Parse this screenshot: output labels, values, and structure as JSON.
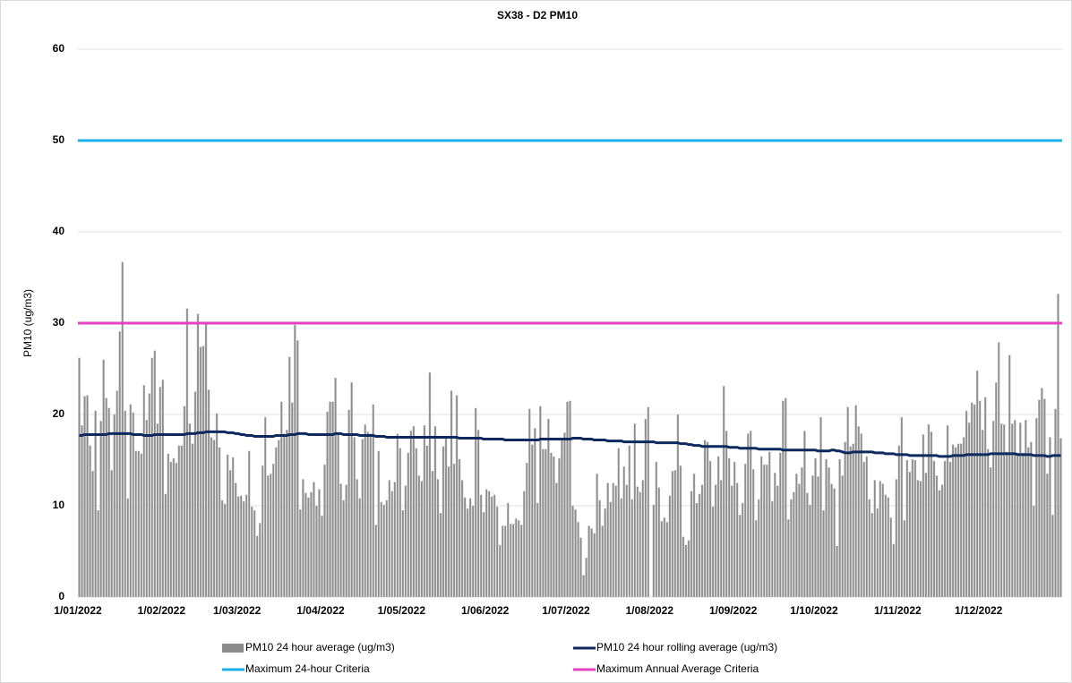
{
  "chart_data": {
    "type": "bar",
    "title": "SX38 - D2 PM10",
    "ylabel": "PM10 (ug/m3)",
    "ylim": [
      0,
      60
    ],
    "yticks": [
      0,
      10,
      20,
      30,
      40,
      50,
      60
    ],
    "grid": true,
    "legend": "bottom",
    "categories": [
      "1/01/2022",
      null,
      null,
      null,
      null,
      null,
      null,
      null,
      null,
      null,
      null,
      null,
      null,
      null,
      null,
      null,
      null,
      null,
      null,
      null,
      null,
      null,
      null,
      null,
      null,
      null,
      null,
      null,
      null,
      null,
      null,
      "1/02/2022",
      null,
      null,
      null,
      null,
      null,
      null,
      null,
      null,
      null,
      null,
      null,
      null,
      null,
      null,
      null,
      null,
      null,
      null,
      null,
      null,
      null,
      null,
      null,
      null,
      null,
      null,
      null,
      "1/03/2022",
      null,
      null,
      null,
      null,
      null,
      null,
      null,
      null,
      null,
      null,
      null,
      null,
      null,
      null,
      null,
      null,
      null,
      null,
      null,
      null,
      null,
      null,
      null,
      null,
      null,
      null,
      null,
      null,
      null,
      null,
      "1/04/2022",
      null,
      null,
      null,
      null,
      null,
      null,
      null,
      null,
      null,
      null,
      null,
      null,
      null,
      null,
      null,
      null,
      null,
      null,
      null,
      null,
      null,
      null,
      null,
      null,
      null,
      null,
      null,
      null,
      null,
      "1/05/2022",
      null,
      null,
      null,
      null,
      null,
      null,
      null,
      null,
      null,
      null,
      null,
      null,
      null,
      null,
      null,
      null,
      null,
      null,
      null,
      null,
      null,
      null,
      null,
      null,
      null,
      null,
      null,
      null,
      null,
      null,
      "1/06/2022",
      null,
      null,
      null,
      null,
      null,
      null,
      null,
      null,
      null,
      null,
      null,
      null,
      null,
      null,
      null,
      null,
      null,
      null,
      null,
      null,
      null,
      null,
      null,
      null,
      null,
      null,
      null,
      null,
      null,
      "1/07/2022",
      null,
      null,
      null,
      null,
      null,
      null,
      null,
      null,
      null,
      null,
      null,
      null,
      null,
      null,
      null,
      null,
      null,
      null,
      null,
      null,
      null,
      null,
      null,
      null,
      null,
      null,
      null,
      null,
      null,
      null,
      "1/08/2022",
      null,
      null,
      null,
      null,
      null,
      null,
      null,
      null,
      null,
      null,
      null,
      null,
      null,
      null,
      null,
      null,
      null,
      null,
      null,
      null,
      null,
      null,
      null,
      null,
      null,
      null,
      null,
      null,
      null,
      null,
      "1/09/2022",
      null,
      null,
      null,
      null,
      null,
      null,
      null,
      null,
      null,
      null,
      null,
      null,
      null,
      null,
      null,
      null,
      null,
      null,
      null,
      null,
      null,
      null,
      null,
      null,
      null,
      null,
      null,
      null,
      null,
      "1/10/2022",
      null,
      null,
      null,
      null,
      null,
      null,
      null,
      null,
      null,
      null,
      null,
      null,
      null,
      null,
      null,
      null,
      null,
      null,
      null,
      null,
      null,
      null,
      null,
      null,
      null,
      null,
      null,
      null,
      null,
      null,
      "1/11/2022",
      null,
      null,
      null,
      null,
      null,
      null,
      null,
      null,
      null,
      null,
      null,
      null,
      null,
      null,
      null,
      null,
      null,
      null,
      null,
      null,
      null,
      null,
      null,
      null,
      null,
      null,
      null,
      null,
      null,
      "1/12/2022",
      null,
      null,
      null,
      null,
      null,
      null,
      null,
      null,
      null,
      null,
      null,
      null,
      null,
      null,
      null,
      null,
      null,
      null,
      null,
      null,
      null,
      null,
      null,
      null,
      null,
      null,
      null,
      null,
      null,
      null
    ],
    "series": [
      {
        "name": "PM10 24 hour average (ug/m3)",
        "type": "bar",
        "color": "#8c8c8c",
        "values": [
          26.2,
          18.8,
          22,
          22.1,
          16.6,
          13.8,
          20.4,
          9.5,
          19.3,
          26,
          21.8,
          20.7,
          13.9,
          20,
          22.6,
          29.1,
          36.7,
          20.4,
          10.8,
          21.1,
          20.2,
          16,
          16,
          15.7,
          23.2,
          19.4,
          22.3,
          26.2,
          27,
          19,
          23,
          23.8,
          11.3,
          15.7,
          14.8,
          15.2,
          14.7,
          16.6,
          16.6,
          20.9,
          31.6,
          19,
          16.8,
          22.5,
          31,
          27.4,
          27.5,
          29.9,
          22.7,
          17.5,
          17.2,
          20.1,
          16.4,
          10.6,
          10.2,
          15.6,
          13.9,
          15.3,
          12.5,
          11,
          11.1,
          10.5,
          11.2,
          16,
          9.9,
          9.5,
          6.7,
          8.1,
          14.4,
          19.7,
          13.3,
          13.5,
          14.6,
          16.4,
          17.2,
          21.4,
          17.9,
          18.3,
          26.3,
          21.3,
          29.8,
          28.1,
          9.6,
          12.9,
          11.4,
          10.9,
          11.5,
          12.6,
          10,
          11.8,
          8.9,
          14.5,
          20.3,
          21.4,
          21.4,
          24,
          17.9,
          12.4,
          10.6,
          12.3,
          20.5,
          23.5,
          17.5,
          12.9,
          10.8,
          17.3,
          18.9,
          18.1,
          17.9,
          21.1,
          7.9,
          16,
          10.4,
          10.1,
          10.6,
          12.8,
          11.6,
          12.6,
          17.9,
          16.3,
          9.5,
          12.2,
          15.8,
          18.2,
          18.7,
          16.3,
          13.3,
          12.7,
          18.8,
          16.6,
          24.6,
          13.8,
          18.7,
          12.9,
          9.2,
          16.5,
          17.6,
          14.3,
          22.6,
          14.6,
          22.1,
          15.1,
          12.8,
          10.9,
          9.7,
          10.8,
          10,
          20.7,
          18.3,
          11.2,
          9.3,
          11.8,
          11.6,
          11,
          11.2,
          9.9,
          5.7,
          7.8,
          7.8,
          10.3,
          8,
          8,
          8.6,
          8.4,
          7.9,
          11.6,
          14.7,
          20.6,
          16.7,
          18.5,
          10.3,
          20.9,
          16.2,
          16.2,
          19.5,
          15.8,
          15.4,
          12.5,
          15.2,
          17.2,
          18,
          21.4,
          21.5,
          10,
          9.6,
          8.2,
          6.5,
          2.4,
          4.3,
          7.8,
          7.5,
          7,
          13.5,
          10.6,
          7.8,
          9.7,
          12.5,
          10.4,
          12.5,
          12.2,
          16.3,
          10.8,
          14.3,
          12.3,
          16.6,
          10.7,
          19,
          12.1,
          11.5,
          12.8,
          19.5,
          20.8,
          null,
          10.1,
          14.8,
          12,
          8.3,
          8.7,
          8.2,
          11.1,
          13.8,
          13.9,
          20,
          14.4,
          6.6,
          5.7,
          6.2,
          11.6,
          13.5,
          10.3,
          11.3,
          12.3,
          17.2,
          17,
          14.9,
          9.9,
          12.3,
          15.4,
          12.8,
          23.1,
          18.2,
          15.2,
          12.2,
          14.8,
          12.5,
          9,
          10.3,
          14.6,
          17.9,
          18.2,
          14,
          8.4,
          10.7,
          15.4,
          14.5,
          14.5,
          15.9,
          10.5,
          13.6,
          12.2,
          15.8,
          21.5,
          21.8,
          8.5,
          10.7,
          11.5,
          13.5,
          12.4,
          14.2,
          18.2,
          11.4,
          10.1,
          13.3,
          15.2,
          13.2,
          19.7,
          9.5,
          15.1,
          14.2,
          12.4,
          11.9,
          5.6,
          15.1,
          13.3,
          17,
          20.8,
          16.5,
          16.8,
          21,
          18.7,
          17.9,
          14.8,
          15.4,
          10.7,
          9.2,
          12.8,
          9.7,
          12.7,
          12.4,
          11.2,
          10.9,
          8.7,
          5.8,
          12.9,
          16.6,
          19.7,
          8.4,
          15,
          13.7,
          15.1,
          15,
          12.8,
          12.7,
          17.8,
          13.6,
          18.9,
          18.1,
          14.9,
          13.3,
          11.7,
          12.3,
          14.9,
          18.8,
          14.8,
          16.7,
          16.4,
          16.8,
          16.8,
          17.5,
          20.4,
          19.1,
          21.3,
          21.1,
          24.8,
          21.5,
          18.3,
          21.9,
          16.2,
          14.2,
          19.3,
          23.5,
          27.9,
          19,
          18.9,
          15.9,
          26.5,
          19,
          19.4,
          15.8,
          19.1,
          15.8,
          19.4,
          16.4,
          17,
          10,
          19.6,
          21.6,
          22.9,
          21.7,
          13.5,
          17.5,
          9,
          20.6,
          33.2,
          17.4
        ]
      },
      {
        "name": "PM10 24 hour rolling average (ug/m3)",
        "type": "line",
        "color": "#0d2a5e",
        "values": [
          17.7,
          17.7,
          17.8,
          17.8,
          17.8,
          17.8,
          17.8,
          17.8,
          17.8,
          17.8,
          17.8,
          17.9,
          17.9,
          17.9,
          17.9,
          17.9,
          17.9,
          17.9,
          17.9,
          17.9,
          17.8,
          17.8,
          17.8,
          17.8,
          17.7,
          17.7,
          17.7,
          17.7,
          17.8,
          17.8,
          17.8,
          17.8,
          17.8,
          17.8,
          17.8,
          17.8,
          17.8,
          17.8,
          17.8,
          17.8,
          17.9,
          17.9,
          17.9,
          17.9,
          18,
          18,
          18,
          18.1,
          18.1,
          18.1,
          18.1,
          18.1,
          18.1,
          18.1,
          18.1,
          18,
          18,
          18,
          17.9,
          17.9,
          17.8,
          17.8,
          17.7,
          17.7,
          17.7,
          17.6,
          17.6,
          17.6,
          17.6,
          17.6,
          17.6,
          17.6,
          17.6,
          17.7,
          17.7,
          17.7,
          17.7,
          17.7,
          17.8,
          17.8,
          17.8,
          17.9,
          17.9,
          17.9,
          17.9,
          17.8,
          17.8,
          17.8,
          17.8,
          17.8,
          17.8,
          17.8,
          17.8,
          17.8,
          17.8,
          17.9,
          17.9,
          17.9,
          17.8,
          17.8,
          17.8,
          17.8,
          17.8,
          17.8,
          17.7,
          17.7,
          17.7,
          17.7,
          17.7,
          17.7,
          17.6,
          17.6,
          17.6,
          17.6,
          17.5,
          17.5,
          17.5,
          17.5,
          17.5,
          17.5,
          17.5,
          17.5,
          17.5,
          17.5,
          17.5,
          17.5,
          17.5,
          17.5,
          17.5,
          17.5,
          17.5,
          17.5,
          17.5,
          17.5,
          17.5,
          17.5,
          17.5,
          17.5,
          17.5,
          17.5,
          17.5,
          17.4,
          17.4,
          17.4,
          17.4,
          17.4,
          17.4,
          17.4,
          17.4,
          17.4,
          17.3,
          17.3,
          17.3,
          17.3,
          17.3,
          17.3,
          17.3,
          17.3,
          17.2,
          17.2,
          17.2,
          17.2,
          17.2,
          17.2,
          17.2,
          17.2,
          17.2,
          17.2,
          17.2,
          17.2,
          17.2,
          17.3,
          17.3,
          17.3,
          17.3,
          17.3,
          17.3,
          17.3,
          17.3,
          17.3,
          17.3,
          17.3,
          17.3,
          17.4,
          17.4,
          17.4,
          17.4,
          17.3,
          17.3,
          17.3,
          17.3,
          17.2,
          17.2,
          17.2,
          17.2,
          17.2,
          17.1,
          17.1,
          17.1,
          17.1,
          17.1,
          17.1,
          17,
          17,
          17,
          17,
          17,
          17,
          17,
          17,
          17,
          17,
          17,
          17,
          16.9,
          16.9,
          16.9,
          16.9,
          16.9,
          16.9,
          16.9,
          16.9,
          16.9,
          16.8,
          16.8,
          16.8,
          16.7,
          16.7,
          16.6,
          16.6,
          16.6,
          16.5,
          16.5,
          16.5,
          16.5,
          16.5,
          16.5,
          16.5,
          16.5,
          16.5,
          16.5,
          16.4,
          16.4,
          16.4,
          16.4,
          16.3,
          16.3,
          16.3,
          16.3,
          16.3,
          16.3,
          16.3,
          16.2,
          16.2,
          16.2,
          16.2,
          16.2,
          16.2,
          16.2,
          16.2,
          16.2,
          16.1,
          16.1,
          16.1,
          16.1,
          16.1,
          16.1,
          16.1,
          16.1,
          16.1,
          16.1,
          16.1,
          16.1,
          16.1,
          16,
          16,
          16,
          16,
          16,
          16.1,
          16.1,
          16,
          16,
          15.9,
          15.8,
          15.8,
          15.8,
          15.9,
          15.9,
          15.9,
          15.9,
          15.9,
          15.9,
          15.9,
          15.9,
          15.8,
          15.8,
          15.8,
          15.8,
          15.7,
          15.7,
          15.7,
          15.7,
          15.6,
          15.6,
          15.6,
          15.6,
          15.6,
          15.5,
          15.5,
          15.5,
          15.5,
          15.5,
          15.5,
          15.5,
          15.5,
          15.5,
          15.5,
          15.5,
          15.4,
          15.4,
          15.4,
          15.4,
          15.4,
          15.5,
          15.5,
          15.5,
          15.5,
          15.5,
          15.6,
          15.6,
          15.6,
          15.6,
          15.6,
          15.6,
          15.6,
          15.6,
          15.6,
          15.7,
          15.7,
          15.7,
          15.7,
          15.7,
          15.7,
          15.7,
          15.7,
          15.7,
          15.7,
          15.6,
          15.6,
          15.6,
          15.6,
          15.6,
          15.6,
          15.5,
          15.5,
          15.5,
          15.5,
          15.5,
          15.4,
          15.4,
          15.5,
          15.5,
          15.5,
          15.5
        ]
      }
    ],
    "reference_lines": [
      {
        "name": "Maximum 24-hour Criteria",
        "value": 50,
        "color": "#1ab0e8"
      },
      {
        "name": "Maximum Annual Average Criteria",
        "value": 30,
        "color": "#e83ec8"
      }
    ]
  }
}
